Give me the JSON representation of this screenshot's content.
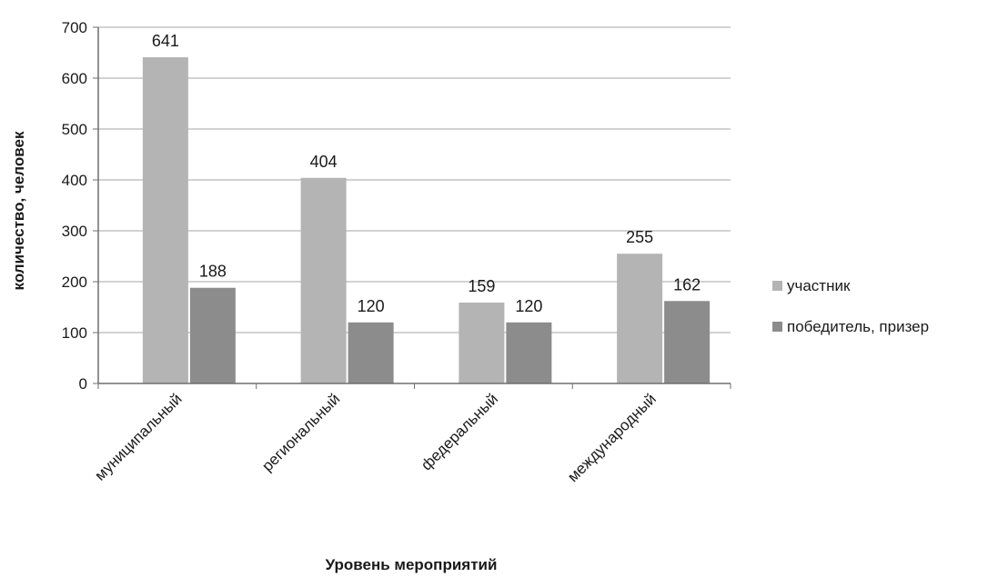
{
  "chart_data": {
    "type": "bar",
    "title": "",
    "xlabel": "Уровень мероприятий",
    "ylabel": "количество, человек",
    "categories": [
      "муниципальный",
      "региональный",
      "федеральный",
      "международный"
    ],
    "series": [
      {
        "name": "участник",
        "values": [
          641,
          404,
          159,
          255
        ],
        "color": "#b4b4b4"
      },
      {
        "name": "победитель, призер",
        "values": [
          188,
          120,
          120,
          162
        ],
        "color": "#8c8c8c"
      }
    ],
    "ylim": [
      0,
      700
    ],
    "yticks": [
      "0",
      "100",
      "200",
      "300",
      "400",
      "500",
      "600",
      "700"
    ],
    "grid": true,
    "legend": "right"
  }
}
